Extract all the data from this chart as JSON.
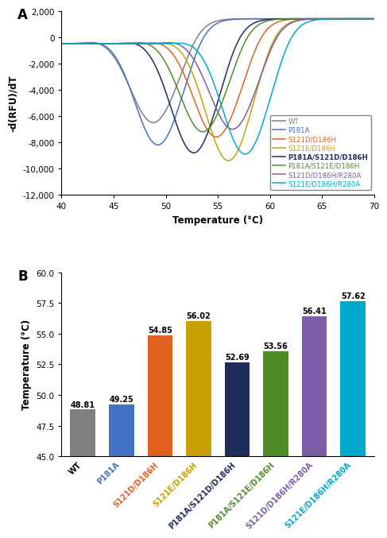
{
  "panel_a_label": "A",
  "panel_b_label": "B",
  "line_series": [
    {
      "label": "WT",
      "color": "#7F7F7F",
      "tm": 48.81,
      "depth": -6500,
      "sigma": 2.2,
      "baseline": -500,
      "recovery_amp": 1400,
      "recovery_rate": 1.5
    },
    {
      "label": "P181A",
      "color": "#4472C4",
      "tm": 49.25,
      "depth": -8200,
      "sigma": 2.2,
      "baseline": -500,
      "recovery_amp": 1400,
      "recovery_rate": 1.5
    },
    {
      "label": "S121D/D186H",
      "color": "#E06020",
      "tm": 54.85,
      "depth": -7600,
      "sigma": 2.2,
      "baseline": -500,
      "recovery_amp": 1400,
      "recovery_rate": 1.5
    },
    {
      "label": "S121E/D186H",
      "color": "#C8A000",
      "tm": 56.02,
      "depth": -9400,
      "sigma": 2.2,
      "baseline": -500,
      "recovery_amp": 1400,
      "recovery_rate": 1.5
    },
    {
      "label": "P181A/S121D/D186H",
      "color": "#1F2D5C",
      "tm": 52.69,
      "depth": -8800,
      "sigma": 2.2,
      "baseline": -500,
      "recovery_amp": 1400,
      "recovery_rate": 1.5
    },
    {
      "label": "P181A/S121E/D186H",
      "color": "#4E8C2A",
      "tm": 53.56,
      "depth": -7200,
      "sigma": 2.2,
      "baseline": -500,
      "recovery_amp": 1400,
      "recovery_rate": 1.5
    },
    {
      "label": "S121D/D186H/R280A",
      "color": "#7B5EA7",
      "tm": 56.41,
      "depth": -7000,
      "sigma": 2.2,
      "baseline": -500,
      "recovery_amp": 1400,
      "recovery_rate": 1.5
    },
    {
      "label": "S121E/D186H/R280A",
      "color": "#00A8CC",
      "tm": 57.62,
      "depth": -8900,
      "sigma": 2.2,
      "baseline": -500,
      "recovery_amp": 1400,
      "recovery_rate": 1.5
    }
  ],
  "xmin": 40,
  "xmax": 70,
  "ymin": -12000,
  "ymax": 2000,
  "xlabel": "Temperature (°C)",
  "ylabel_a": "-d(RFU)/dT",
  "bar_categories": [
    "WT",
    "P181A",
    "S121D/D186H",
    "S121E/D186H",
    "P181A/S121D/D186H",
    "P181A/S121E/D186H",
    "S121D/D186H/R280A",
    "S121E/D186H/R280A"
  ],
  "bar_tick_labels": [
    "WT",
    "P181A",
    "S121D/D186H",
    "S121E/D186H",
    "P181A/S121D/D186H",
    "P181A/S121E/D186H",
    "S121D/D186H/R280A",
    "S121E/D186H/R280A"
  ],
  "bar_colors": [
    "#7F7F7F",
    "#4472C4",
    "#E06020",
    "#C8A000",
    "#1F2D5C",
    "#4E8C2A",
    "#7B5EA7",
    "#00A8CC"
  ],
  "bar_label_colors": [
    "#000000",
    "#4472C4",
    "#E06020",
    "#C8A000",
    "#1F2D5C",
    "#4E8C2A",
    "#7B5EA7",
    "#00A8CC"
  ],
  "bar_values": [
    48.81,
    49.25,
    54.85,
    56.02,
    52.69,
    53.56,
    56.41,
    57.62
  ],
  "bar_ymin": 45.0,
  "bar_ymax": 60.0,
  "ylabel_b": "Temperature (°C)"
}
